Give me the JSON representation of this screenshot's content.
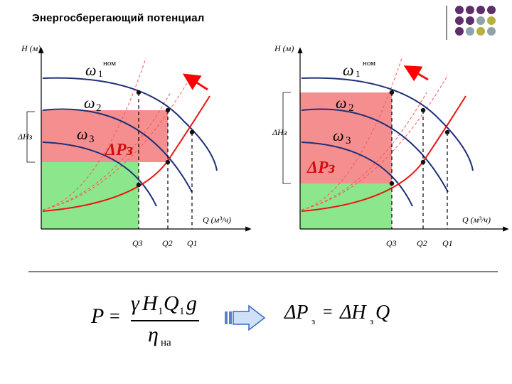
{
  "title": "Энергосберегающий потенциал",
  "deco_colors": {
    "purple": "#5e2f6b",
    "gray": "#8fa3a8",
    "olive": "#b4b23d"
  },
  "left_chart": {
    "y_axis_label": "H (м)",
    "x_axis_label": "Q (м³/ч)",
    "delta_h_label": "ΔHз",
    "omega1": "ω",
    "omega1_sub": "1",
    "omega1_sup": "ном",
    "omega2": "ω",
    "omega2_sub": "2",
    "omega3": "ω",
    "omega3_sub": "3",
    "delta_p_label": "ΔPз",
    "q_ticks": [
      "Q3",
      "Q2",
      "Q1"
    ]
  },
  "right_chart": {
    "y_axis_label": "H (м)",
    "x_axis_label": "Q (м³/ч)",
    "delta_h_label": "ΔHз",
    "omega1": "ω",
    "omega1_sub": "1",
    "omega1_sup": "ном",
    "omega2": "ω",
    "omega2_sub": "2",
    "omega3": "ω",
    "omega3_sub": "3",
    "delta_p_label": "ΔPз",
    "q_ticks": [
      "Q3",
      "Q2",
      "Q1"
    ]
  },
  "formula_power": {
    "lhs": "P",
    "eq": "=",
    "num_gamma": "γ",
    "num_h": "H",
    "num_h_sub": "1",
    "num_q": "Q",
    "num_q_sub": "1",
    "num_g": "g",
    "den_eta": "η",
    "den_sub": "на"
  },
  "formula_delta": {
    "lhs": "ΔP",
    "lhs_sub": "з",
    "eq": "=",
    "rhs_dh": "ΔH",
    "rhs_sub": "з",
    "rhs_q": "Q"
  }
}
